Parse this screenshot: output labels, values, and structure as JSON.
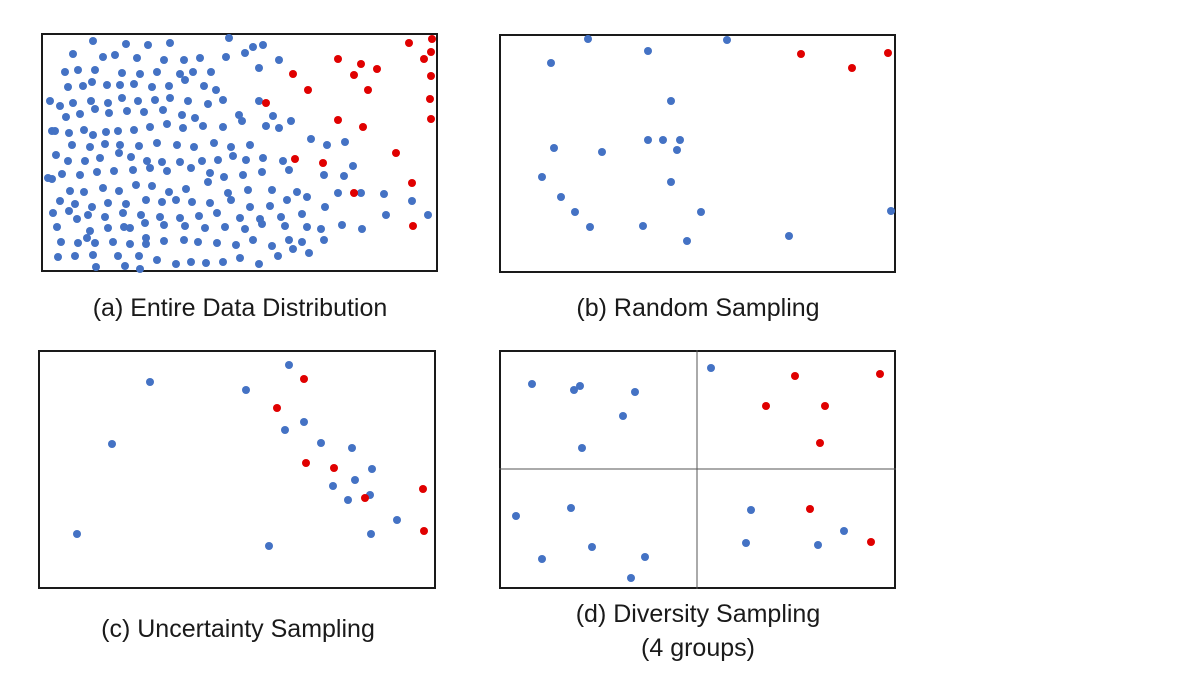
{
  "colors": {
    "majority": "#4472c4",
    "minority": "#e00000"
  },
  "panels": [
    {
      "id": "a",
      "caption": [
        "(a) Entire Data Distribution"
      ],
      "grid": false,
      "blue": [
        [
          93,
          41
        ],
        [
          126,
          44
        ],
        [
          148,
          45
        ],
        [
          170,
          43
        ],
        [
          229,
          38
        ],
        [
          245,
          53
        ],
        [
          253,
          47
        ],
        [
          263,
          45
        ],
        [
          73,
          54
        ],
        [
          103,
          57
        ],
        [
          115,
          55
        ],
        [
          137,
          58
        ],
        [
          164,
          60
        ],
        [
          184,
          60
        ],
        [
          200,
          58
        ],
        [
          226,
          57
        ],
        [
          259,
          68
        ],
        [
          279,
          60
        ],
        [
          65,
          72
        ],
        [
          78,
          70
        ],
        [
          95,
          70
        ],
        [
          122,
          73
        ],
        [
          140,
          74
        ],
        [
          157,
          72
        ],
        [
          180,
          74
        ],
        [
          193,
          72
        ],
        [
          211,
          72
        ],
        [
          50,
          101
        ],
        [
          68,
          87
        ],
        [
          83,
          86
        ],
        [
          92,
          82
        ],
        [
          107,
          85
        ],
        [
          120,
          85
        ],
        [
          134,
          84
        ],
        [
          152,
          87
        ],
        [
          169,
          86
        ],
        [
          185,
          80
        ],
        [
          204,
          86
        ],
        [
          216,
          90
        ],
        [
          60,
          106
        ],
        [
          73,
          103
        ],
        [
          91,
          101
        ],
        [
          108,
          103
        ],
        [
          122,
          98
        ],
        [
          138,
          101
        ],
        [
          155,
          100
        ],
        [
          170,
          98
        ],
        [
          188,
          101
        ],
        [
          208,
          104
        ],
        [
          223,
          100
        ],
        [
          259,
          101
        ],
        [
          52,
          131
        ],
        [
          66,
          117
        ],
        [
          80,
          114
        ],
        [
          95,
          109
        ],
        [
          109,
          113
        ],
        [
          127,
          111
        ],
        [
          144,
          112
        ],
        [
          163,
          110
        ],
        [
          182,
          115
        ],
        [
          195,
          118
        ],
        [
          239,
          115
        ],
        [
          273,
          116
        ],
        [
          55,
          131
        ],
        [
          69,
          133
        ],
        [
          84,
          130
        ],
        [
          93,
          135
        ],
        [
          106,
          132
        ],
        [
          118,
          131
        ],
        [
          134,
          130
        ],
        [
          150,
          127
        ],
        [
          167,
          124
        ],
        [
          183,
          128
        ],
        [
          203,
          126
        ],
        [
          223,
          127
        ],
        [
          242,
          121
        ],
        [
          266,
          126
        ],
        [
          279,
          128
        ],
        [
          291,
          121
        ],
        [
          56,
          155
        ],
        [
          72,
          145
        ],
        [
          90,
          147
        ],
        [
          105,
          144
        ],
        [
          120,
          145
        ],
        [
          139,
          146
        ],
        [
          157,
          143
        ],
        [
          177,
          145
        ],
        [
          194,
          147
        ],
        [
          214,
          143
        ],
        [
          231,
          147
        ],
        [
          250,
          145
        ],
        [
          68,
          161
        ],
        [
          85,
          161
        ],
        [
          100,
          158
        ],
        [
          119,
          153
        ],
        [
          131,
          157
        ],
        [
          147,
          161
        ],
        [
          162,
          162
        ],
        [
          180,
          162
        ],
        [
          202,
          161
        ],
        [
          218,
          160
        ],
        [
          233,
          156
        ],
        [
          246,
          160
        ],
        [
          263,
          158
        ],
        [
          283,
          161
        ],
        [
          311,
          139
        ],
        [
          327,
          145
        ],
        [
          48,
          178
        ],
        [
          62,
          174
        ],
        [
          80,
          175
        ],
        [
          97,
          172
        ],
        [
          114,
          171
        ],
        [
          133,
          170
        ],
        [
          150,
          168
        ],
        [
          167,
          171
        ],
        [
          191,
          168
        ],
        [
          210,
          173
        ],
        [
          224,
          177
        ],
        [
          243,
          175
        ],
        [
          262,
          172
        ],
        [
          289,
          170
        ],
        [
          345,
          142
        ],
        [
          52,
          179
        ],
        [
          70,
          191
        ],
        [
          84,
          192
        ],
        [
          103,
          188
        ],
        [
          119,
          191
        ],
        [
          136,
          185
        ],
        [
          152,
          186
        ],
        [
          169,
          192
        ],
        [
          186,
          189
        ],
        [
          208,
          182
        ],
        [
          228,
          193
        ],
        [
          248,
          190
        ],
        [
          272,
          190
        ],
        [
          297,
          192
        ],
        [
          324,
          175
        ],
        [
          344,
          176
        ],
        [
          60,
          201
        ],
        [
          75,
          204
        ],
        [
          92,
          207
        ],
        [
          108,
          203
        ],
        [
          126,
          204
        ],
        [
          146,
          200
        ],
        [
          162,
          202
        ],
        [
          176,
          200
        ],
        [
          192,
          202
        ],
        [
          210,
          203
        ],
        [
          231,
          200
        ],
        [
          250,
          207
        ],
        [
          270,
          206
        ],
        [
          287,
          200
        ],
        [
          307,
          197
        ],
        [
          338,
          193
        ],
        [
          353,
          166
        ],
        [
          384,
          194
        ],
        [
          53,
          213
        ],
        [
          69,
          211
        ],
        [
          88,
          215
        ],
        [
          105,
          217
        ],
        [
          123,
          213
        ],
        [
          141,
          215
        ],
        [
          160,
          217
        ],
        [
          180,
          218
        ],
        [
          199,
          216
        ],
        [
          217,
          213
        ],
        [
          240,
          218
        ],
        [
          260,
          219
        ],
        [
          281,
          217
        ],
        [
          302,
          214
        ],
        [
          325,
          207
        ],
        [
          361,
          193
        ],
        [
          412,
          201
        ],
        [
          386,
          215
        ],
        [
          428,
          215
        ],
        [
          57,
          227
        ],
        [
          77,
          219
        ],
        [
          90,
          231
        ],
        [
          108,
          228
        ],
        [
          124,
          227
        ],
        [
          145,
          223
        ],
        [
          164,
          225
        ],
        [
          185,
          226
        ],
        [
          205,
          228
        ],
        [
          225,
          227
        ],
        [
          245,
          229
        ],
        [
          262,
          224
        ],
        [
          285,
          226
        ],
        [
          307,
          227
        ],
        [
          321,
          229
        ],
        [
          342,
          225
        ],
        [
          362,
          229
        ],
        [
          61,
          242
        ],
        [
          78,
          243
        ],
        [
          95,
          243
        ],
        [
          113,
          242
        ],
        [
          130,
          244
        ],
        [
          146,
          244
        ],
        [
          164,
          241
        ],
        [
          184,
          240
        ],
        [
          198,
          242
        ],
        [
          217,
          243
        ],
        [
          236,
          245
        ],
        [
          253,
          240
        ],
        [
          272,
          246
        ],
        [
          289,
          240
        ],
        [
          302,
          242
        ],
        [
          324,
          240
        ],
        [
          58,
          257
        ],
        [
          75,
          256
        ],
        [
          93,
          255
        ],
        [
          118,
          256
        ],
        [
          139,
          256
        ],
        [
          157,
          260
        ],
        [
          176,
          264
        ],
        [
          191,
          262
        ],
        [
          206,
          263
        ],
        [
          223,
          262
        ],
        [
          240,
          258
        ],
        [
          259,
          264
        ],
        [
          278,
          256
        ],
        [
          293,
          249
        ],
        [
          309,
          253
        ],
        [
          96,
          267
        ],
        [
          125,
          266
        ],
        [
          140,
          269
        ],
        [
          130,
          228
        ],
        [
          146,
          238
        ],
        [
          87,
          238
        ]
      ],
      "red": [
        [
          409,
          43
        ],
        [
          432,
          39
        ],
        [
          431,
          52
        ],
        [
          424,
          59
        ],
        [
          338,
          59
        ],
        [
          361,
          64
        ],
        [
          293,
          74
        ],
        [
          354,
          75
        ],
        [
          377,
          69
        ],
        [
          431,
          76
        ],
        [
          308,
          90
        ],
        [
          368,
          90
        ],
        [
          266,
          103
        ],
        [
          430,
          99
        ],
        [
          338,
          120
        ],
        [
          363,
          127
        ],
        [
          431,
          119
        ],
        [
          396,
          153
        ],
        [
          295,
          159
        ],
        [
          323,
          163
        ],
        [
          412,
          183
        ],
        [
          354,
          193
        ],
        [
          413,
          226
        ]
      ]
    },
    {
      "id": "b",
      "caption": [
        "(b) Random Sampling"
      ],
      "grid": false,
      "blue": [
        [
          588,
          39
        ],
        [
          648,
          51
        ],
        [
          727,
          40
        ],
        [
          551,
          63
        ],
        [
          671,
          101
        ],
        [
          648,
          140
        ],
        [
          663,
          140
        ],
        [
          680,
          140
        ],
        [
          554,
          148
        ],
        [
          602,
          152
        ],
        [
          677,
          150
        ],
        [
          542,
          177
        ],
        [
          671,
          182
        ],
        [
          561,
          197
        ],
        [
          891,
          211
        ],
        [
          575,
          212
        ],
        [
          701,
          212
        ],
        [
          590,
          227
        ],
        [
          643,
          226
        ],
        [
          789,
          236
        ],
        [
          687,
          241
        ]
      ],
      "red": [
        [
          801,
          54
        ],
        [
          888,
          53
        ],
        [
          852,
          68
        ]
      ]
    },
    {
      "id": "c",
      "caption": [
        "(c) Uncertainty Sampling"
      ],
      "grid": false,
      "blue": [
        [
          150,
          382
        ],
        [
          289,
          365
        ],
        [
          246,
          390
        ],
        [
          112,
          444
        ],
        [
          304,
          422
        ],
        [
          285,
          430
        ],
        [
          321,
          443
        ],
        [
          352,
          448
        ],
        [
          372,
          469
        ],
        [
          355,
          480
        ],
        [
          333,
          486
        ],
        [
          370,
          495
        ],
        [
          348,
          500
        ],
        [
          397,
          520
        ],
        [
          371,
          534
        ],
        [
          77,
          534
        ],
        [
          269,
          546
        ]
      ],
      "red": [
        [
          304,
          379
        ],
        [
          277,
          408
        ],
        [
          306,
          463
        ],
        [
          334,
          468
        ],
        [
          365,
          498
        ],
        [
          423,
          489
        ],
        [
          424,
          531
        ]
      ]
    },
    {
      "id": "d",
      "caption": [
        "(d) Diversity Sampling",
        "(4 groups)"
      ],
      "grid": true,
      "blue": [
        [
          532,
          384
        ],
        [
          580,
          386
        ],
        [
          574,
          390
        ],
        [
          635,
          392
        ],
        [
          623,
          416
        ],
        [
          582,
          448
        ],
        [
          711,
          368
        ],
        [
          516,
          516
        ],
        [
          571,
          508
        ],
        [
          542,
          559
        ],
        [
          592,
          547
        ],
        [
          645,
          557
        ],
        [
          631,
          578
        ],
        [
          751,
          510
        ],
        [
          746,
          543
        ],
        [
          818,
          545
        ],
        [
          844,
          531
        ]
      ],
      "red": [
        [
          795,
          376
        ],
        [
          880,
          374
        ],
        [
          766,
          406
        ],
        [
          825,
          406
        ],
        [
          820,
          443
        ],
        [
          810,
          509
        ],
        [
          871,
          542
        ]
      ]
    }
  ]
}
